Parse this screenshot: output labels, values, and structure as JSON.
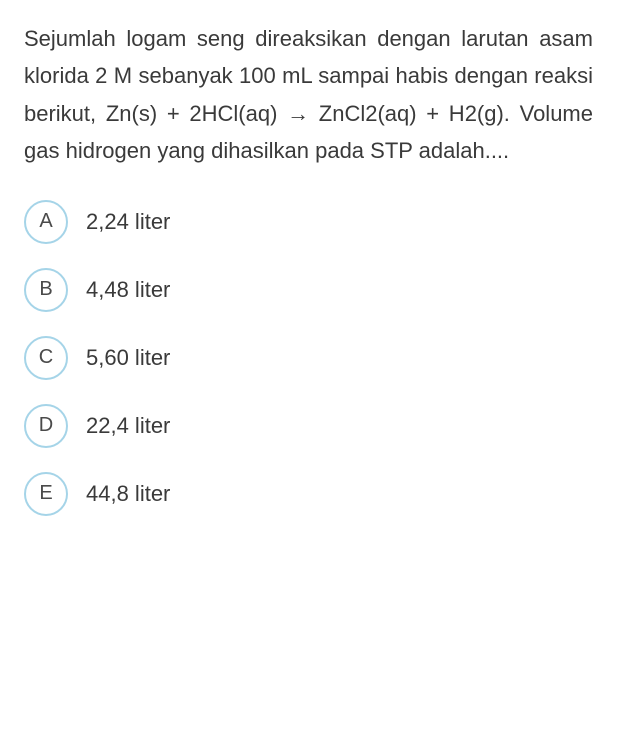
{
  "question": {
    "text": "Sejumlah logam seng direaksikan dengan larutan asam klorida 2 M sebanyak 100 mL sampai habis dengan reaksi berikut, Zn(s) + 2HCl(aq) → ZnCl2(aq) + H2(g). Volume gas hidrogen yang dihasilkan pada STP adalah...."
  },
  "options": [
    {
      "letter": "A",
      "text": "2,24 liter"
    },
    {
      "letter": "B",
      "text": "4,48 liter"
    },
    {
      "letter": "C",
      "text": "5,60 liter"
    },
    {
      "letter": "D",
      "text": "22,4 liter"
    },
    {
      "letter": "E",
      "text": "44,8 liter"
    }
  ],
  "styling": {
    "background_color": "#ffffff",
    "text_color": "#3a3a3a",
    "circle_border_color": "#a5d4e8",
    "circle_border_width": 2,
    "circle_size": 44,
    "question_fontsize": 22,
    "option_fontsize": 22,
    "letter_fontsize": 20,
    "line_height": 1.7
  }
}
